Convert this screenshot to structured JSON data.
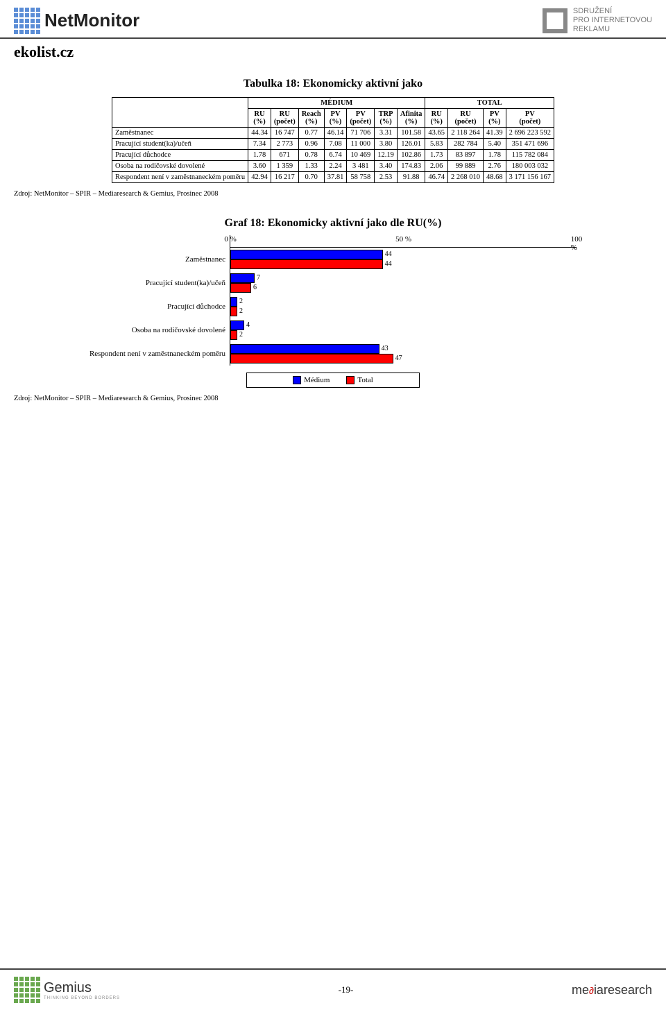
{
  "header": {
    "brand_left": "NetMonitor",
    "brand_right_l1": "SDRUŽENÍ",
    "brand_right_l2": "PRO INTERNETOVOU",
    "brand_right_l3": "REKLAMU"
  },
  "site": "ekolist.cz",
  "table": {
    "title": "Tabulka 18: Ekonomicky aktivní jako",
    "group_a": "MÉDIUM",
    "group_b": "TOTAL",
    "cols": [
      "RU (%)",
      "RU (počet)",
      "Reach (%)",
      "PV (%)",
      "PV (počet)",
      "TRP (%)",
      "Afinita (%)",
      "RU (%)",
      "RU (počet)",
      "PV (%)",
      "PV (počet)"
    ],
    "rows": [
      {
        "label": "Zaměstnanec",
        "cells": [
          "44.34",
          "16 747",
          "0.77",
          "46.14",
          "71 706",
          "3.31",
          "101.58",
          "43.65",
          "2 118 264",
          "41.39",
          "2 696 223 592"
        ]
      },
      {
        "label": "Pracující student(ka)/učeň",
        "cells": [
          "7.34",
          "2 773",
          "0.96",
          "7.08",
          "11 000",
          "3.80",
          "126.01",
          "5.83",
          "282 784",
          "5.40",
          "351 471 696"
        ]
      },
      {
        "label": "Pracující důchodce",
        "cells": [
          "1.78",
          "671",
          "0.78",
          "6.74",
          "10 469",
          "12.19",
          "102.86",
          "1.73",
          "83 897",
          "1.78",
          "115 782 084"
        ]
      },
      {
        "label": "Osoba na rodičovské dovolené",
        "cells": [
          "3.60",
          "1 359",
          "1.33",
          "2.24",
          "3 481",
          "3.40",
          "174.83",
          "2.06",
          "99 889",
          "2.76",
          "180 003 032"
        ]
      },
      {
        "label": "Respondent není v zaměstnaneckém poměru",
        "cells": [
          "42.94",
          "16 217",
          "0.70",
          "37.81",
          "58 758",
          "2.53",
          "91.88",
          "46.74",
          "2 268 010",
          "48.68",
          "3 171 156 167"
        ]
      }
    ]
  },
  "source": "Zdroj: NetMonitor – SPIR – Mediaresearch & Gemius, Prosinec 2008",
  "chart": {
    "title": "Graf 18: Ekonomicky aktivní jako dle RU(%)",
    "xmax": 100,
    "ticks": [
      {
        "pos": 0,
        "label": "0 %"
      },
      {
        "pos": 50,
        "label": "50 %"
      },
      {
        "pos": 100,
        "label": "100 %"
      }
    ],
    "colors": {
      "medium": "#0000ff",
      "total": "#ff0000",
      "border": "#000000",
      "bg": "#ffffff"
    },
    "categories": [
      {
        "label": "Zaměstnanec",
        "medium": 44,
        "total": 44
      },
      {
        "label": "Pracující student(ka)/učeň",
        "medium": 7,
        "total": 6
      },
      {
        "label": "Pracující důchodce",
        "medium": 2,
        "total": 2
      },
      {
        "label": "Osoba na rodičovské dovolené",
        "medium": 4,
        "total": 2
      },
      {
        "label": "Respondent není v zaměstnaneckém poměru",
        "medium": 43,
        "total": 47
      }
    ],
    "legend": {
      "medium": "Médium",
      "total": "Total"
    }
  },
  "footer": {
    "left_brand": "Gemius",
    "left_sub": "THINKING BEYOND BORDERS",
    "page": "-19-",
    "right_pre": "me",
    "right_o": "∂",
    "right_post": "iaresearch"
  }
}
